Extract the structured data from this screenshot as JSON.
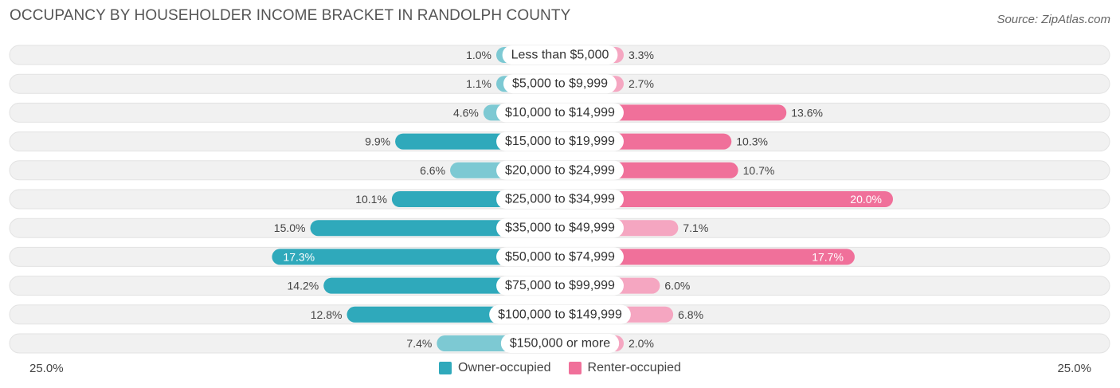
{
  "header": {
    "title": "OCCUPANCY BY HOUSEHOLDER INCOME BRACKET IN RANDOLPH COUNTY",
    "source": "Source: ZipAtlas.com"
  },
  "axis": {
    "left_label": "25.0%",
    "right_label": "25.0%"
  },
  "legend": {
    "owner_label": "Owner-occupied",
    "renter_label": "Renter-occupied"
  },
  "colors": {
    "owner_dark": "#2fa9bb",
    "owner_light": "#7dc9d3",
    "renter_dark": "#f0709a",
    "renter_light": "#f5a6c1",
    "track": "#efefef"
  },
  "chart_data": {
    "type": "bar",
    "orientation": "diverging-horizontal",
    "title": "OCCUPANCY BY HOUSEHOLDER INCOME BRACKET IN RANDOLPH COUNTY",
    "xlim": [
      -25,
      25
    ],
    "categories": [
      "Less than $5,000",
      "$5,000 to $9,999",
      "$10,000 to $14,999",
      "$15,000 to $19,999",
      "$20,000 to $24,999",
      "$25,000 to $34,999",
      "$35,000 to $49,999",
      "$50,000 to $74,999",
      "$75,000 to $99,999",
      "$100,000 to $149,999",
      "$150,000 or more"
    ],
    "series": [
      {
        "name": "Owner-occupied",
        "values": [
          1.0,
          1.1,
          4.6,
          9.9,
          6.6,
          10.1,
          15.0,
          17.3,
          14.2,
          12.8,
          7.4
        ],
        "labels": [
          "1.0%",
          "1.1%",
          "4.6%",
          "9.9%",
          "6.6%",
          "10.1%",
          "15.0%",
          "17.3%",
          "14.2%",
          "12.8%",
          "7.4%"
        ]
      },
      {
        "name": "Renter-occupied",
        "values": [
          3.3,
          2.7,
          13.6,
          10.3,
          10.7,
          20.0,
          7.1,
          17.7,
          6.0,
          6.8,
          2.0
        ],
        "labels": [
          "3.3%",
          "2.7%",
          "13.6%",
          "10.3%",
          "10.7%",
          "20.0%",
          "7.1%",
          "17.7%",
          "6.0%",
          "6.8%",
          "2.0%"
        ]
      }
    ]
  }
}
